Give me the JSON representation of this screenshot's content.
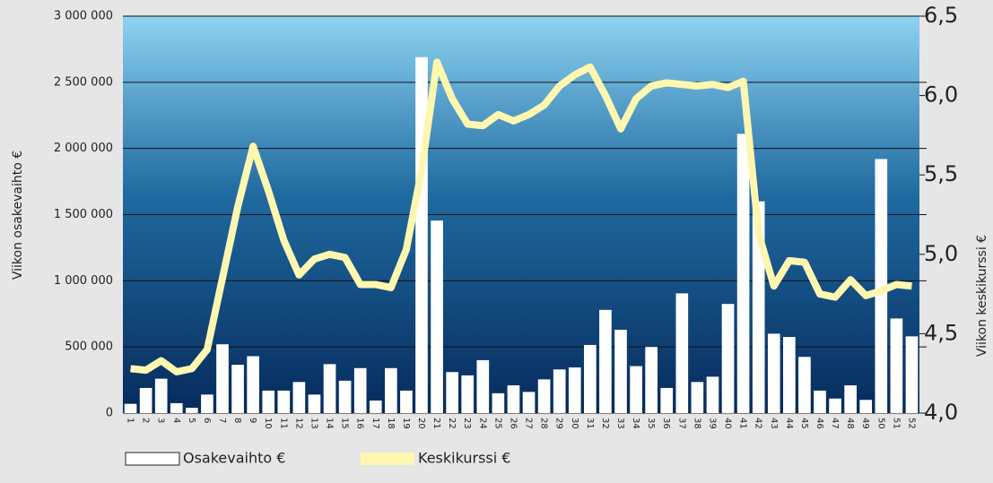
{
  "chart_data": {
    "type": "bar-line",
    "y_label": "Viikon osakevaihto €",
    "y2_label": "Viikon keskikurssi €",
    "categories": [
      "1",
      "2",
      "3",
      "4",
      "5",
      "6",
      "7",
      "8",
      "9",
      "10",
      "11",
      "12",
      "13",
      "14",
      "15",
      "16",
      "17",
      "18",
      "19",
      "20",
      "21",
      "22",
      "23",
      "24",
      "25",
      "26",
      "27",
      "28",
      "29",
      "30",
      "31",
      "32",
      "33",
      "34",
      "35",
      "36",
      "37",
      "38",
      "39",
      "40",
      "41",
      "42",
      "43",
      "44",
      "45",
      "46",
      "47",
      "48",
      "49",
      "50",
      "51",
      "52"
    ],
    "series": [
      {
        "name": "Osakevaihto €",
        "type": "bar",
        "color": "#ffffff",
        "axis": "y",
        "values": [
          70000,
          190000,
          260000,
          75000,
          40000,
          140000,
          520000,
          365000,
          430000,
          170000,
          170000,
          235000,
          140000,
          370000,
          245000,
          340000,
          95000,
          340000,
          170000,
          2690000,
          1455000,
          310000,
          285000,
          400000,
          150000,
          210000,
          160000,
          255000,
          330000,
          345000,
          515000,
          780000,
          630000,
          355000,
          500000,
          190000,
          905000,
          235000,
          275000,
          825000,
          2110000,
          1600000,
          600000,
          575000,
          425000,
          170000,
          110000,
          210000,
          100000,
          1920000,
          715000,
          580000
        ]
      },
      {
        "name": "Keskikurssi €",
        "type": "line",
        "color": "#fff7b0",
        "axis": "y2",
        "values": [
          4.28,
          4.27,
          4.33,
          4.26,
          4.28,
          4.4,
          4.85,
          5.3,
          5.68,
          5.4,
          5.09,
          4.87,
          4.97,
          5.0,
          4.98,
          4.81,
          4.81,
          4.79,
          5.03,
          5.53,
          6.21,
          5.98,
          5.82,
          5.81,
          5.88,
          5.84,
          5.88,
          5.94,
          6.06,
          6.13,
          6.18,
          6.0,
          5.79,
          5.98,
          6.06,
          6.08,
          6.07,
          6.06,
          6.07,
          6.05,
          6.09,
          5.13,
          4.8,
          4.96,
          4.95,
          4.75,
          4.73,
          4.84,
          4.74,
          4.77,
          4.81,
          4.8
        ]
      }
    ],
    "ylim": [
      0,
      3000000
    ],
    "yticks": [
      0,
      {
        "value": 500000,
        "label": "500 000"
      },
      {
        "value": 1000000,
        "label": "1 000 000"
      },
      {
        "value": 1500000,
        "label": "1 500 000"
      },
      {
        "value": 2000000,
        "label": "2 000 000"
      },
      {
        "value": 2500000,
        "label": "2 500 000"
      },
      {
        "value": 3000000,
        "label": "3 000 000"
      }
    ],
    "y2lim": [
      4.0,
      6.5
    ],
    "y2ticks": [
      {
        "value": 4.0,
        "label": "4,0"
      },
      {
        "value": 4.5,
        "label": "4,5"
      },
      {
        "value": 5.0,
        "label": "5,0"
      },
      {
        "value": 5.5,
        "label": "5,5"
      },
      {
        "value": 6.0,
        "label": "6,0"
      },
      {
        "value": 6.5,
        "label": "6,5"
      }
    ],
    "grid": true
  }
}
